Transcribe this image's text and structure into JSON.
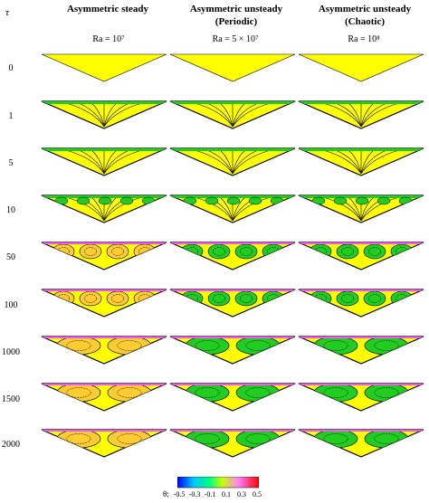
{
  "columns": [
    {
      "title_line1": "Asymmetric steady",
      "title_line2": "",
      "ra": "Ra = 10⁷"
    },
    {
      "title_line1": "Asymmetric unsteady",
      "title_line2": "(Periodic)",
      "ra": "Ra = 5 × 10⁷"
    },
    {
      "title_line1": "Asymmetric unsteady",
      "title_line2": "(Chaotic)",
      "ra": "Ra = 10⁸"
    }
  ],
  "tau_axis": {
    "symbol": "τ",
    "values": [
      "0",
      "1",
      "5",
      "10",
      "50",
      "100",
      "1000",
      "1500",
      "2000"
    ]
  },
  "colorbar": {
    "symbol": "θ:",
    "ticks": [
      "-0.5",
      "-0.3",
      "-0.1",
      "0.1",
      "0.3",
      "0.5"
    ],
    "colors": [
      "#0000ff",
      "#00c8ff",
      "#00ff80",
      "#c8ff00",
      "#ff80ff",
      "#ff0000"
    ]
  },
  "colors": {
    "fluid": "#ffff00",
    "streamline": "#000000",
    "cold_patch": "#22cc22",
    "hot_patch": "#ff55ff"
  }
}
